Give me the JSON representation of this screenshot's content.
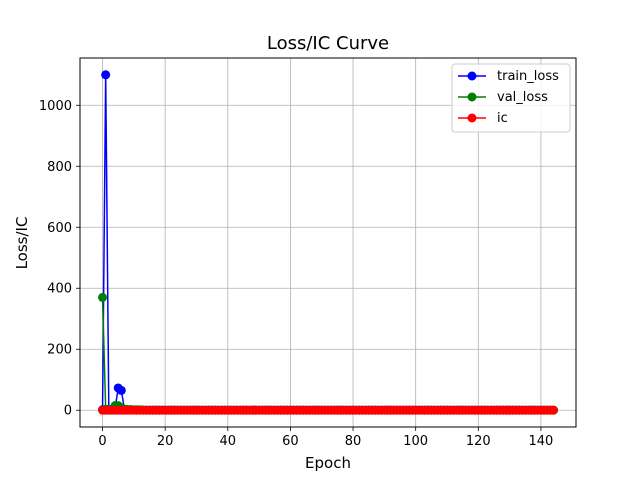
{
  "chart_data": {
    "type": "line",
    "title": "Loss/IC Curve",
    "xlabel": "Epoch",
    "ylabel": "Loss/IC",
    "xlim": [
      -7.2,
      151.2
    ],
    "ylim": [
      -55,
      1155
    ],
    "xticks": [
      0,
      20,
      40,
      60,
      80,
      100,
      120,
      140
    ],
    "yticks": [
      0,
      200,
      400,
      600,
      800,
      1000
    ],
    "grid": true,
    "legend_position": "top-right",
    "epochs_last": 144,
    "series": [
      {
        "name": "train_loss",
        "color": "#0000ff",
        "points": [
          [
            0,
            2
          ],
          [
            1,
            1100
          ],
          [
            2,
            3
          ],
          [
            3,
            2
          ],
          [
            4,
            5
          ],
          [
            5,
            73
          ],
          [
            6,
            65
          ],
          [
            7,
            3
          ],
          [
            8,
            2
          ],
          [
            9,
            2
          ],
          [
            10,
            1
          ],
          [
            11,
            1
          ],
          [
            12,
            1
          ]
        ],
        "tail_value": 0.5
      },
      {
        "name": "val_loss",
        "color": "#008000",
        "points": [
          [
            0,
            370
          ],
          [
            1,
            3
          ],
          [
            2,
            2
          ],
          [
            3,
            3
          ],
          [
            4,
            15
          ],
          [
            5,
            15
          ],
          [
            6,
            8
          ],
          [
            7,
            3
          ],
          [
            8,
            2
          ],
          [
            9,
            2
          ],
          [
            10,
            1
          ],
          [
            11,
            1
          ],
          [
            12,
            1
          ]
        ],
        "tail_value": 0.5
      },
      {
        "name": "ic",
        "color": "#ff0000",
        "points": [],
        "tail_value": 0.0
      }
    ]
  }
}
